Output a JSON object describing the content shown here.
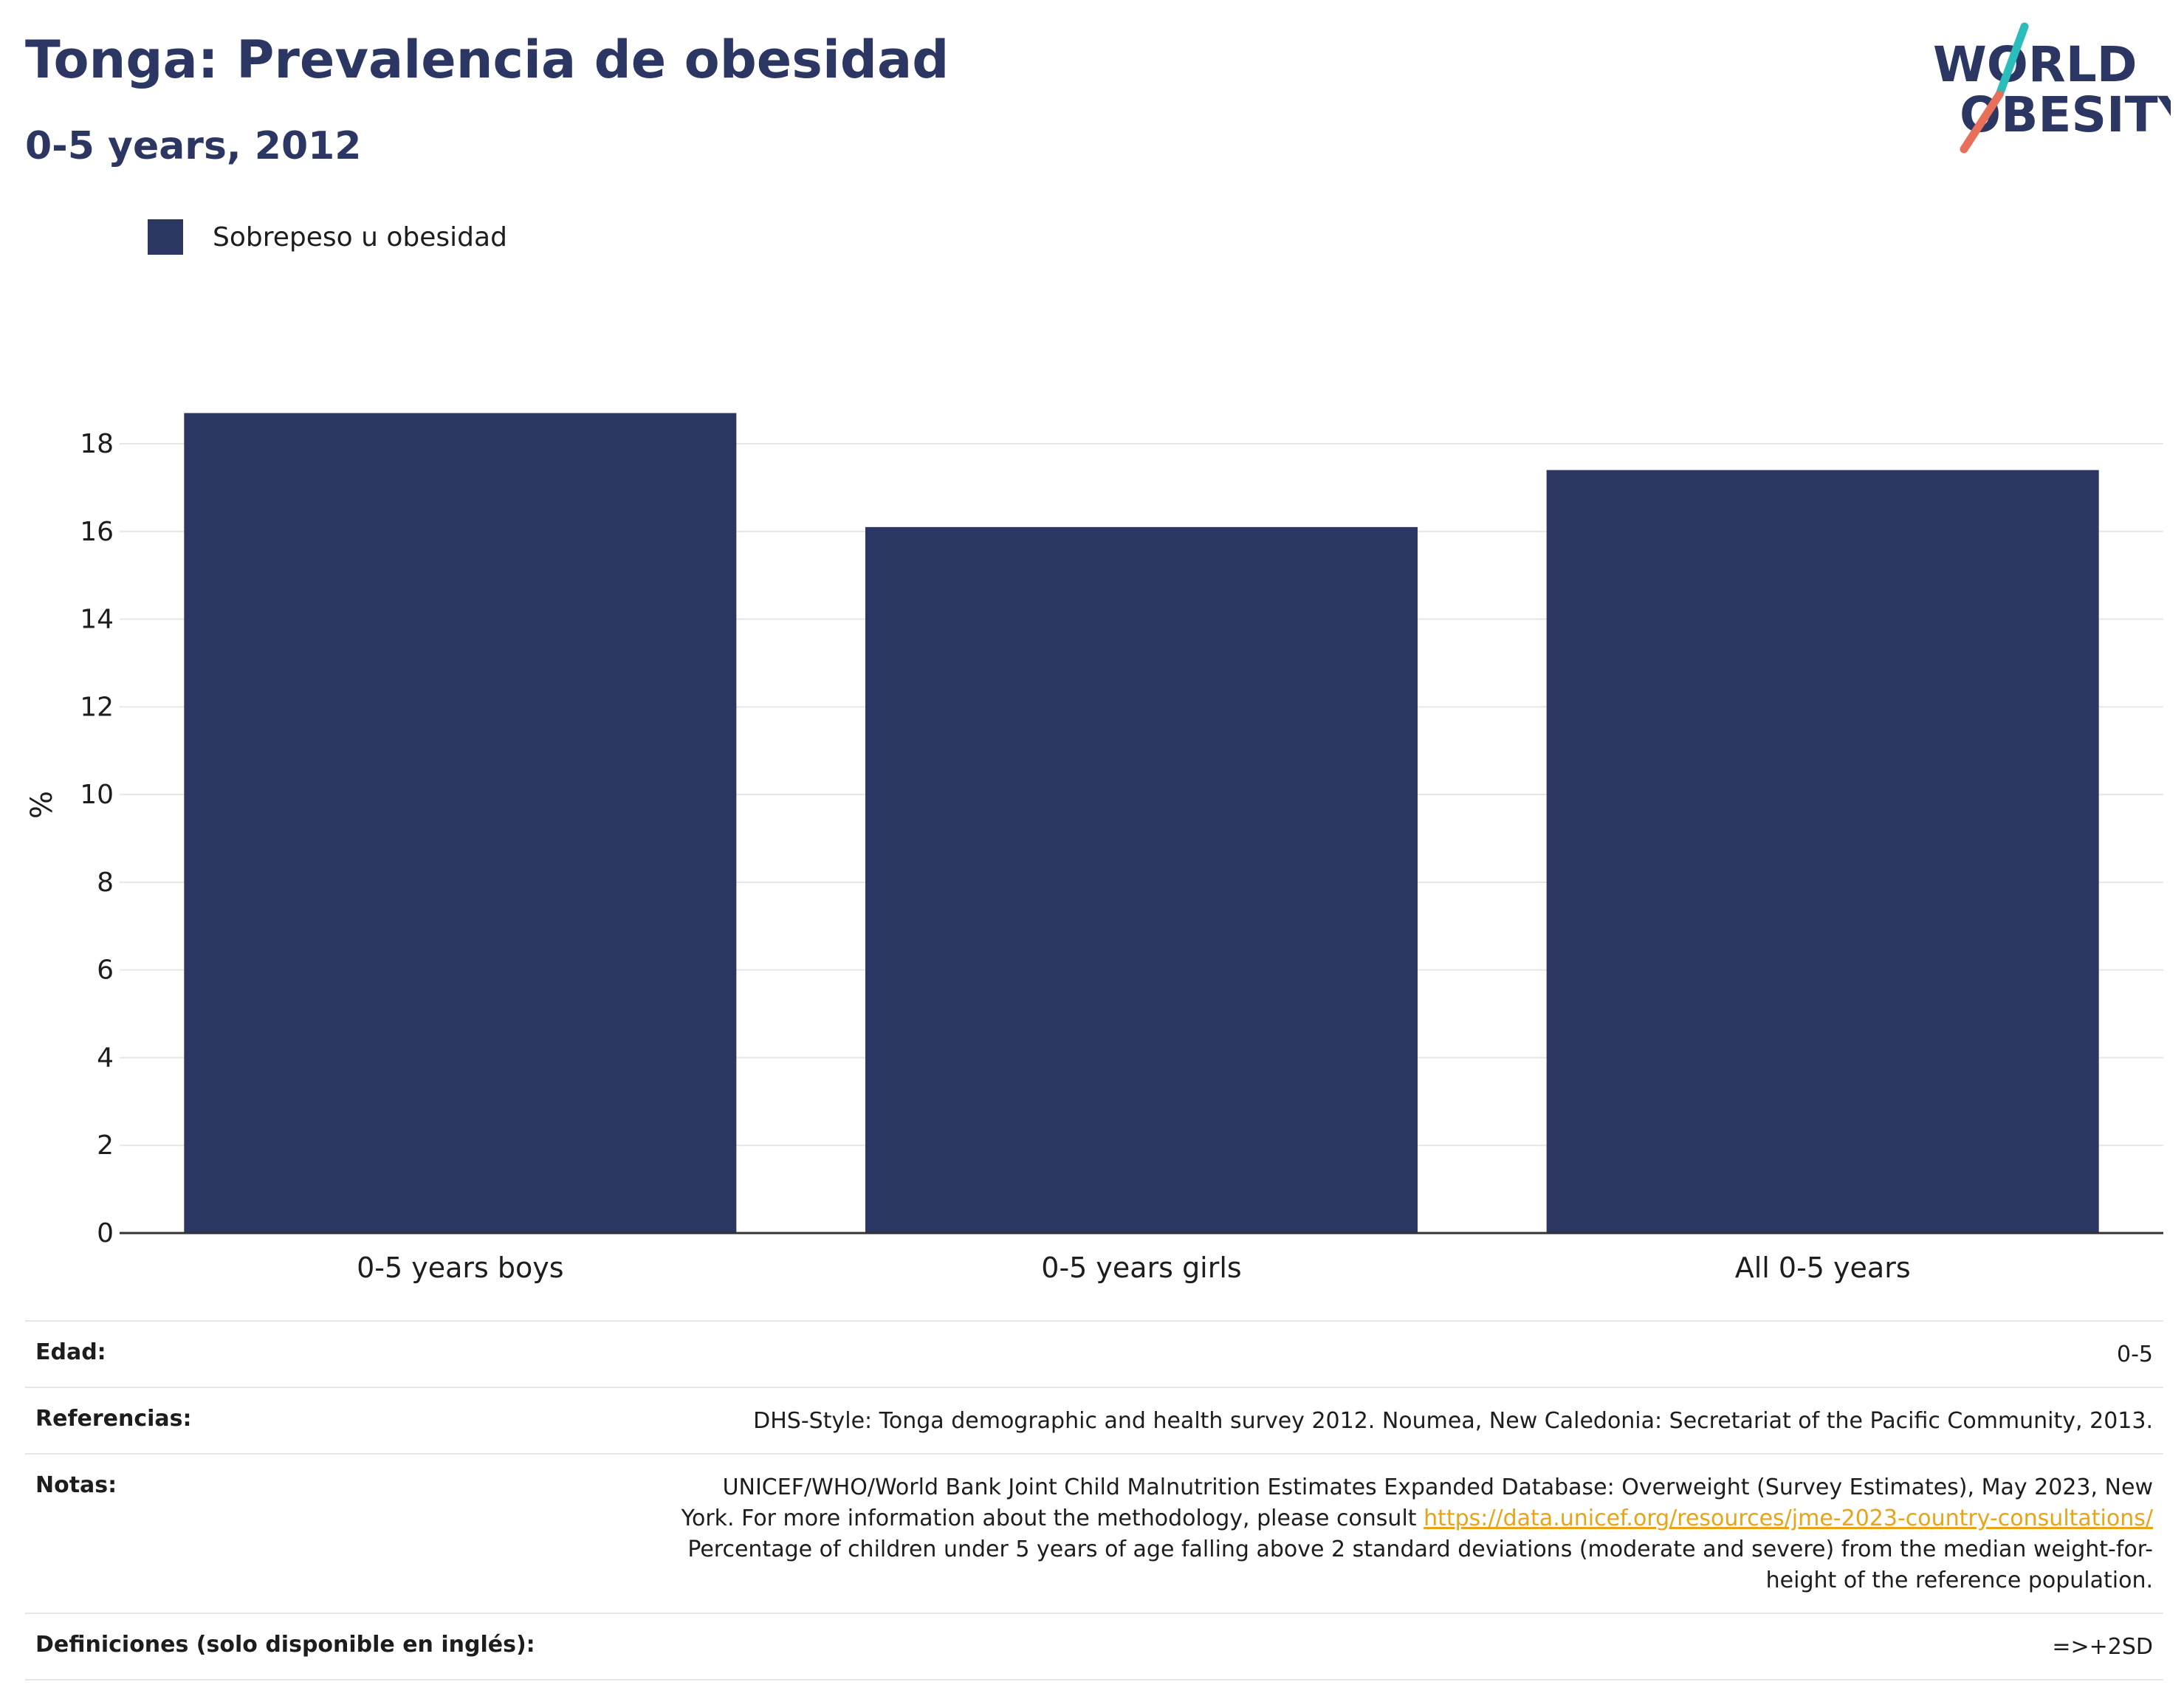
{
  "header": {
    "title": "Tonga: Prevalencia de obesidad",
    "subtitle": "0-5 years, 2012"
  },
  "logo": {
    "line1": "WORLD",
    "line2": "OBESITY",
    "colors": {
      "navy": "#2b3663",
      "teal": "#2bbcbc",
      "coral": "#e8705a"
    }
  },
  "chart_data": {
    "type": "bar",
    "categories": [
      "0-5 years boys",
      "0-5 years girls",
      "All 0-5 years"
    ],
    "series": [
      {
        "name": "Sobrepeso u obesidad",
        "values": [
          18.7,
          16.1,
          17.4
        ],
        "color": "#2b3663"
      }
    ],
    "xlabel": "",
    "ylabel": "%",
    "ylim": [
      0,
      19
    ],
    "yticks": [
      0,
      2,
      4,
      6,
      8,
      10,
      12,
      14,
      16,
      18
    ],
    "grid": true,
    "legend_position": "top-left"
  },
  "info": {
    "age": {
      "label": "Edad:",
      "value": "0-5"
    },
    "references": {
      "label": "Referencias:",
      "value": "DHS-Style: Tonga demographic and health survey 2012. Noumea, New Caledonia: Secretariat of the Pacific Community, 2013."
    },
    "notes": {
      "label": "Notas:",
      "line1": "UNICEF/WHO/World Bank Joint Child Malnutrition Estimates Expanded Database: Overweight (Survey Estimates), May 2023, New",
      "line2": "York. For more information about the methodology, please consult",
      "link": "https://data.unicef.org/resources/jme-2023-country-consultations/",
      "line3": "Percentage of children under 5 years of age falling above 2 standard deviations (moderate and severe) from the median weight-for-",
      "line4": "height of the reference population."
    },
    "definitions": {
      "label": "Definiciones (solo disponible en inglés):",
      "value": "=>+2SD"
    }
  }
}
